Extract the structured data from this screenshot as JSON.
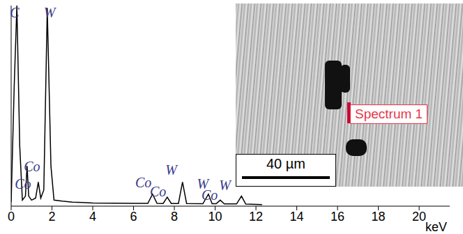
{
  "chart_data": {
    "type": "line",
    "x_label": "keV",
    "xlim": [
      0,
      21.5
    ],
    "xticks": [
      0,
      2,
      4,
      6,
      8,
      10,
      12,
      14,
      16,
      18,
      20
    ],
    "ylim": [
      0,
      100
    ],
    "tick_labels": "x",
    "grid": false,
    "color": "#000000",
    "x": [
      0,
      0.15,
      0.28,
      0.42,
      0.55,
      0.7,
      0.78,
      0.86,
      1.0,
      1.2,
      1.33,
      1.45,
      1.6,
      1.77,
      1.95,
      2.1,
      2.5,
      3.0,
      3.5,
      4.0,
      5.0,
      6.0,
      6.7,
      6.93,
      7.15,
      7.45,
      7.65,
      7.85,
      8.2,
      8.4,
      8.6,
      9.4,
      9.67,
      9.85,
      10.05,
      10.25,
      10.45,
      11.05,
      11.29,
      11.5,
      12.3
    ],
    "values": [
      2,
      60,
      100,
      30,
      3,
      5,
      20,
      5,
      3,
      4,
      12,
      4,
      8,
      98.6,
      20,
      3,
      2.5,
      2,
      1.8,
      1.6,
      1.5,
      1.4,
      1.4,
      6,
      1.4,
      1.3,
      4.5,
      1.3,
      1.3,
      12,
      1.3,
      1.2,
      6,
      1.2,
      1.2,
      3,
      1.1,
      1.1,
      5,
      1.0,
      0.8
    ],
    "annotations": [
      {
        "text": "C",
        "x": 0.17,
        "y": 96.5
      },
      {
        "text": "W",
        "x": 1.88,
        "y": 96.5
      },
      {
        "text": "Co",
        "x": 1.02,
        "y": 20
      },
      {
        "text": "Co",
        "x": 0.58,
        "y": 11
      },
      {
        "text": "Co",
        "x": 6.48,
        "y": 11.8
      },
      {
        "text": "Co",
        "x": 7.2,
        "y": 7.3
      },
      {
        "text": "W",
        "x": 7.85,
        "y": 18
      },
      {
        "text": "W",
        "x": 9.39,
        "y": 11.1
      },
      {
        "text": "Co",
        "x": 9.73,
        "y": 5.6
      },
      {
        "text": "W",
        "x": 10.48,
        "y": 10.4
      }
    ],
    "inset": {
      "scale_bar": "40 µm",
      "spectrum_label": "Spectrum 1"
    }
  }
}
